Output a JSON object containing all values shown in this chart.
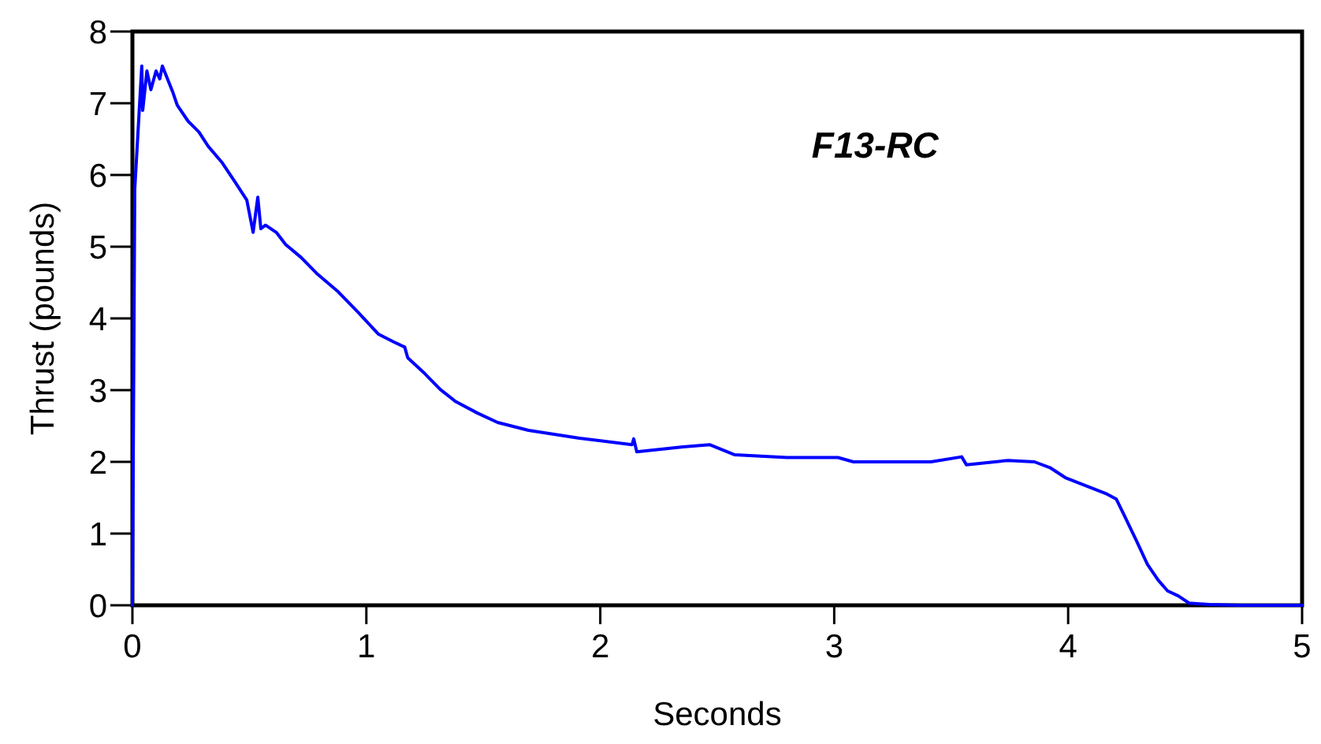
{
  "chart_data": {
    "type": "line",
    "title": "F13-RC",
    "xlabel": "Seconds",
    "ylabel": "Thrust (pounds)",
    "x": [
      0,
      0.007,
      0.01,
      0.04,
      0.044,
      0.062,
      0.079,
      0.101,
      0.117,
      0.128,
      0.172,
      0.192,
      0.238,
      0.284,
      0.324,
      0.384,
      0.437,
      0.489,
      0.516,
      0.536,
      0.549,
      0.569,
      0.615,
      0.655,
      0.721,
      0.787,
      0.88,
      0.966,
      1.052,
      1.118,
      1.164,
      1.177,
      1.25,
      1.316,
      1.382,
      1.475,
      1.561,
      1.693,
      1.911,
      2.136,
      2.143,
      2.156,
      2.354,
      2.467,
      2.573,
      2.798,
      3.016,
      3.082,
      3.234,
      3.413,
      3.545,
      3.565,
      3.743,
      3.856,
      3.922,
      3.988,
      4.074,
      4.16,
      4.206,
      4.239,
      4.292,
      4.339,
      4.385,
      4.425,
      4.471,
      4.517,
      4.603,
      4.735,
      5
    ],
    "values": [
      0,
      4.0,
      5.8,
      7.52,
      6.9,
      7.45,
      7.19,
      7.45,
      7.34,
      7.52,
      7.16,
      6.97,
      6.75,
      6.6,
      6.4,
      6.17,
      5.91,
      5.65,
      5.2,
      5.69,
      5.25,
      5.3,
      5.2,
      5.03,
      4.85,
      4.63,
      4.37,
      4.08,
      3.78,
      3.67,
      3.6,
      3.45,
      3.23,
      3.01,
      2.84,
      2.68,
      2.55,
      2.44,
      2.33,
      2.24,
      2.32,
      2.14,
      2.21,
      2.24,
      2.1,
      2.06,
      2.06,
      2.0,
      2.0,
      2.0,
      2.07,
      1.96,
      2.02,
      2.0,
      1.92,
      1.78,
      1.67,
      1.56,
      1.48,
      1.26,
      0.9,
      0.57,
      0.35,
      0.2,
      0.13,
      0.03,
      0.01,
      0,
      0
    ],
    "color": "#0000ff",
    "xlim": [
      0,
      5
    ],
    "ylim": [
      0,
      8
    ],
    "xticks": [
      0,
      1,
      2,
      3,
      4,
      5
    ],
    "yticks": [
      0,
      1,
      2,
      3,
      4,
      5,
      6,
      7,
      8
    ]
  }
}
